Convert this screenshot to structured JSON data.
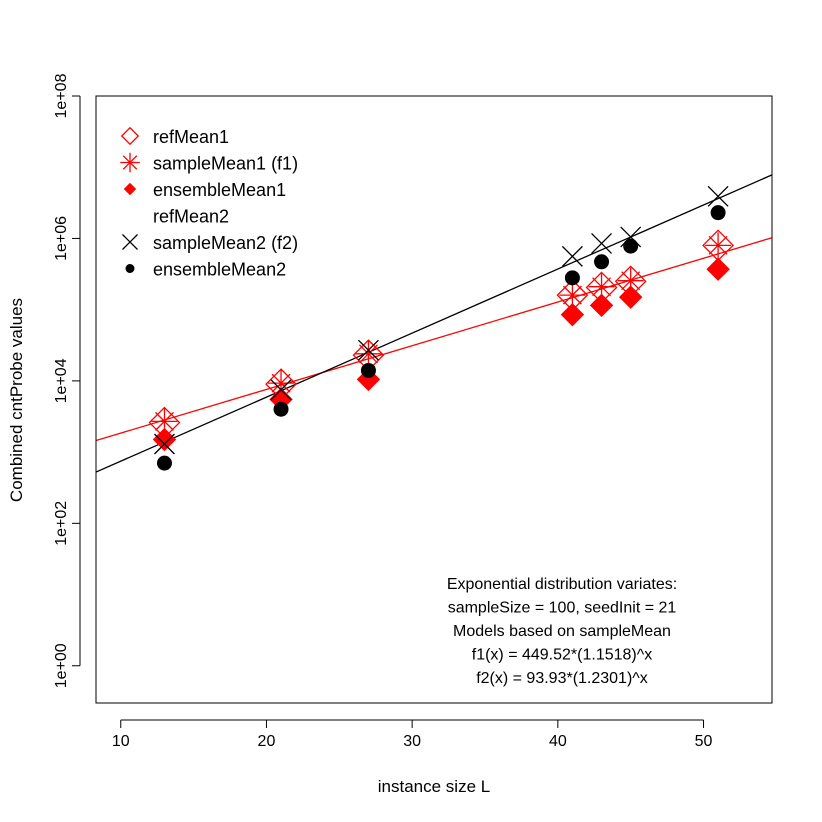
{
  "chart_data": {
    "type": "scatter",
    "xlabel": "instance size L",
    "ylabel": "Combined  cntProbe values",
    "x_ticks": [
      10,
      20,
      30,
      40,
      50
    ],
    "y_ticks": [
      {
        "value": 1,
        "label": "1e+00"
      },
      {
        "value": 100,
        "label": "1e+02"
      },
      {
        "value": 10000,
        "label": "1e+04"
      },
      {
        "value": 1000000,
        "label": "1e+06"
      },
      {
        "value": 100000000,
        "label": "1e+08"
      }
    ],
    "y_scale": "log",
    "xlim": [
      8.3,
      54.7
    ],
    "ylim": [
      0.3,
      100000000
    ],
    "grid": false,
    "legend_position": "top-left",
    "colors": {
      "series1": "#ff0000",
      "series2": "#000000"
    },
    "x": [
      13,
      21,
      27,
      41,
      43,
      45,
      51
    ],
    "series": [
      {
        "name": "refMean1",
        "marker": "open-diamond",
        "color": "#ff0000",
        "values": [
          2600,
          9000,
          23000,
          160000,
          205000,
          250000,
          800000
        ]
      },
      {
        "name": "sampleMean1 (f1)",
        "marker": "asterisk",
        "color": "#ff0000",
        "values": [
          2700,
          9300,
          24000,
          160000,
          210000,
          255000,
          800000
        ]
      },
      {
        "name": "ensembleMean1",
        "marker": "filled-diamond",
        "color": "#ff0000",
        "values": [
          1500,
          5500,
          10500,
          85000,
          115000,
          150000,
          370000
        ]
      },
      {
        "name": "refMean2",
        "marker": "none",
        "color": "#000000",
        "values": []
      },
      {
        "name": "sampleMean2 (f2)",
        "marker": "cross",
        "color": "#000000",
        "values": [
          1300,
          7500,
          27000,
          560000,
          850000,
          1050000,
          3900000
        ]
      },
      {
        "name": "ensembleMean2",
        "marker": "filled-circle",
        "color": "#000000",
        "values": [
          700,
          4000,
          14000,
          280000,
          470000,
          780000,
          2300000
        ]
      }
    ],
    "fit_lines": [
      {
        "name": "f1",
        "color": "#ff0000",
        "a": 449.52,
        "b": 1.1518
      },
      {
        "name": "f2",
        "color": "#000000",
        "a": 93.93,
        "b": 1.2301
      }
    ],
    "annotation": [
      "Exponential distribution variates:",
      "sampleSize = 100, seedInit = 21",
      "Models based on sampleMean",
      "f1(x) = 449.52*(1.1518)^x",
      "f2(x) = 93.93*(1.2301)^x"
    ]
  }
}
